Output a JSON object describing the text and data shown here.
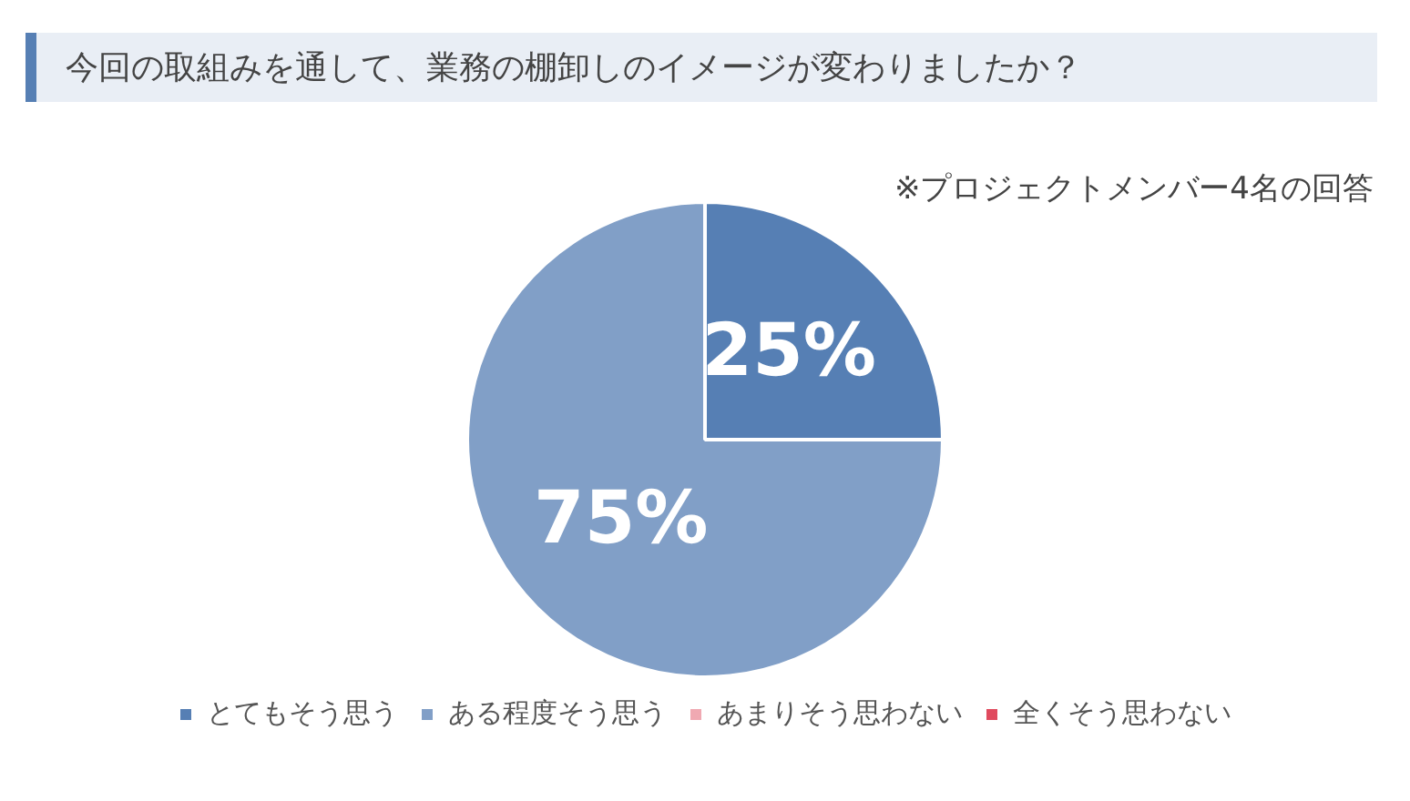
{
  "chart_data": {
    "type": "pie",
    "title": "今回の取組みを通して、業務の棚卸しのイメージが変わりましたか？",
    "subtitle": "※プロジェクトメンバー4名の回答",
    "categories": [
      "とてもそう思う",
      "ある程度そう思う",
      "あまりそう思わない",
      "全くそう思わない"
    ],
    "values": [
      25,
      75,
      0,
      0
    ],
    "colors": [
      "#567fb4",
      "#819fc7",
      "#f0a9b2",
      "#e04a5e"
    ],
    "value_labels": [
      "25%",
      "75%",
      null,
      null
    ],
    "legend": "bottom"
  }
}
